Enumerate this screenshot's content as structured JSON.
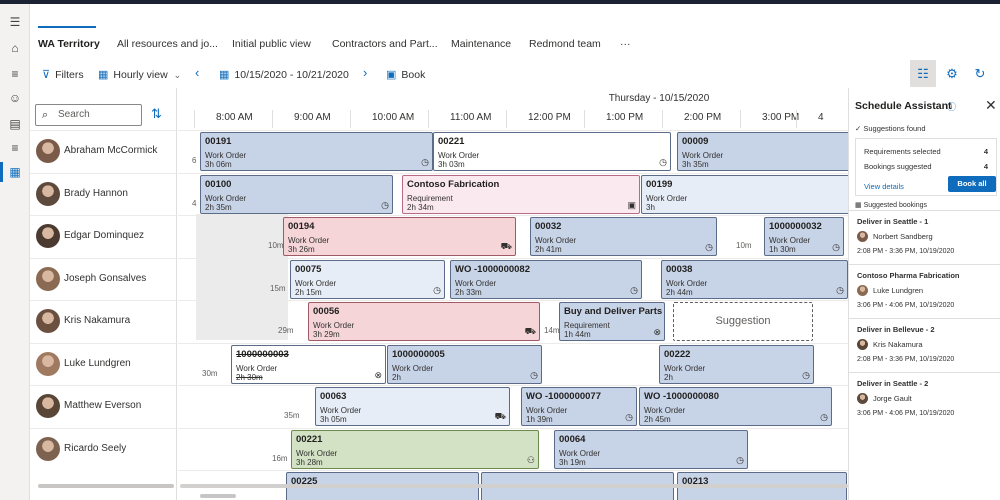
{
  "tabs": [
    "WA Territory",
    "All resources and jo...",
    "Initial public view",
    "Contractors and Part...",
    "Maintenance",
    "Redmond team",
    "···"
  ],
  "toolbar": {
    "filters": "Filters",
    "view": "Hourly view",
    "date_range": "10/15/2020 - 10/21/2020",
    "book": "Book"
  },
  "search": {
    "placeholder": "Search"
  },
  "date_header": "Thursday - 10/15/2020",
  "hours": [
    "8:00 AM",
    "9:00 AM",
    "10:00 AM",
    "11:00 AM",
    "12:00 PM",
    "1:00 PM",
    "2:00 PM",
    "3:00 PM",
    "4"
  ],
  "resources": [
    "Abraham McCormick",
    "Brady Hannon",
    "Edgar Dominquez",
    "Joseph Gonsalves",
    "Kris Nakamura",
    "Luke Lundgren",
    "Matthew Everson",
    "Ricardo Seely"
  ],
  "rows": [
    {
      "travel": [
        "6"
      ],
      "bookings": [
        {
          "id": "00191",
          "type": "Work Order",
          "dur": "3h 06m"
        },
        {
          "id": "00221",
          "type": "Work Order",
          "dur": "3h 03m"
        },
        {
          "id": "00009",
          "type": "Work Order",
          "dur": "3h 35m"
        }
      ]
    },
    {
      "travel": [
        "4"
      ],
      "bookings": [
        {
          "id": "00100",
          "type": "Work Order",
          "dur": "2h 35m"
        },
        {
          "id": "Contoso Fabrication",
          "type": "Requirement",
          "dur": "2h 34m"
        },
        {
          "id": "00199",
          "type": "Work Order",
          "dur": "3h"
        }
      ]
    },
    {
      "travel": [
        "10m",
        "10m"
      ],
      "bookings": [
        {
          "id": "00194",
          "type": "Work Order",
          "dur": "3h 26m"
        },
        {
          "id": "00032",
          "type": "Work Order",
          "dur": "2h 41m"
        },
        {
          "id": "1000000032",
          "type": "Work Order",
          "dur": "1h 30m"
        }
      ]
    },
    {
      "travel": [
        "15m",
        "10m"
      ],
      "bookings": [
        {
          "id": "00075",
          "type": "Work Order",
          "dur": "2h 15m"
        },
        {
          "id": "WO -1000000082",
          "type": "Work Order",
          "dur": "2h 33m"
        },
        {
          "id": "00038",
          "type": "Work Order",
          "dur": "2h 44m"
        }
      ]
    },
    {
      "travel": [
        "29m",
        "14m"
      ],
      "bookings": [
        {
          "id": "00056",
          "type": "Work Order",
          "dur": "3h 29m"
        },
        {
          "id": "Buy and Deliver Parts",
          "type": "Requirement",
          "dur": "1h 44m"
        },
        {
          "id": "Suggestion",
          "type": "",
          "dur": ""
        }
      ]
    },
    {
      "travel": [
        "30m"
      ],
      "bookings": [
        {
          "id": "1000000003",
          "type": "Work Order",
          "dur": "2h 30m"
        },
        {
          "id": "1000000005",
          "type": "Work Order",
          "dur": "2h"
        },
        {
          "id": "00222",
          "type": "Work Order",
          "dur": "2h"
        }
      ]
    },
    {
      "travel": [
        "35m"
      ],
      "bookings": [
        {
          "id": "00063",
          "type": "Work Order",
          "dur": "3h 05m"
        },
        {
          "id": "WO -1000000077",
          "type": "Work Order",
          "dur": "1h 39m"
        },
        {
          "id": "WO -1000000080",
          "type": "Work Order",
          "dur": "2h 45m"
        }
      ]
    },
    {
      "travel": [
        "16m"
      ],
      "bookings": [
        {
          "id": "00221",
          "type": "Work Order",
          "dur": "3h 28m"
        },
        {
          "id": "00064",
          "type": "Work Order",
          "dur": "3h 19m"
        }
      ]
    },
    {
      "travel": [],
      "bookings": [
        {
          "id": "00225",
          "type": "",
          "dur": ""
        },
        {
          "id": "",
          "type": "",
          "dur": ""
        },
        {
          "id": "00213",
          "type": "",
          "dur": ""
        }
      ]
    }
  ],
  "panel": {
    "title": "Schedule Assistant",
    "status": "Suggestions found",
    "req_label": "Requirements selected",
    "req_value": "4",
    "book_label": "Bookings suggested",
    "book_value": "4",
    "view_details": "View details",
    "book_all": "Book all",
    "suggested_header": "Suggested bookings",
    "suggestions": [
      {
        "title": "Deliver in Seattle - 1",
        "name": "Norbert Sandberg",
        "time": "2:08 PM - 3:36 PM, 10/19/2020"
      },
      {
        "title": "Contoso Pharma Fabrication",
        "name": "Luke Lundgren",
        "time": "3:06 PM - 4:06 PM, 10/19/2020"
      },
      {
        "title": "Deliver in Bellevue - 2",
        "name": "Kris Nakamura",
        "time": "2:08 PM - 3:36 PM, 10/19/2020"
      },
      {
        "title": "Deliver in Seattle - 2",
        "name": "Jorge Gault",
        "time": "3:06 PM - 4:06 PM, 10/19/2020"
      }
    ]
  },
  "colors": {
    "accent": "#0f6cbd",
    "work_order": "#c7d3e6",
    "requirement": "#fbe9f0",
    "overdue": "#f5d5d8",
    "completed": "#d3e2c4"
  }
}
